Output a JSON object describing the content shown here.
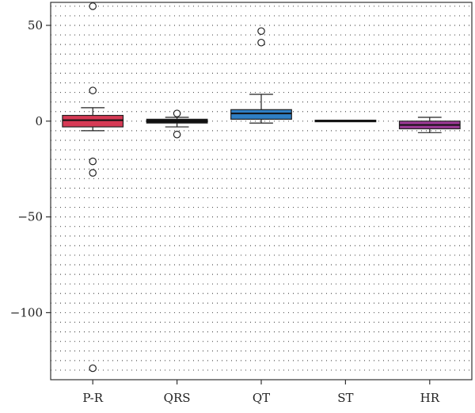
{
  "chart_data": {
    "type": "boxplot",
    "title": "",
    "xlabel": "",
    "ylabel": "",
    "categories": [
      "P-R",
      "QRS",
      "QT",
      "ST",
      "HR"
    ],
    "ylim": [
      -135,
      62
    ],
    "yticks": [
      50,
      0,
      -50,
      -100
    ],
    "ytick_labels": [
      "50",
      "0",
      "−50",
      "−100"
    ],
    "grid": "horizontal dotted",
    "legend": "none",
    "boxes": [
      {
        "name": "P-R",
        "color": "#d63a55",
        "whisker_low": -5,
        "q1": -3,
        "median": 0.5,
        "q3": 3,
        "whisker_high": 7,
        "outliers": [
          60,
          16,
          -21,
          -27,
          -129
        ]
      },
      {
        "name": "QRS",
        "color": "#111111",
        "whisker_low": -3,
        "q1": -1,
        "median": 0,
        "q3": 1,
        "whisker_high": 2,
        "outliers": [
          4,
          -7
        ]
      },
      {
        "name": "QT",
        "color": "#2f7fc4",
        "whisker_low": -1,
        "q1": 1,
        "median": 4,
        "q3": 6,
        "whisker_high": 14,
        "outliers": [
          47,
          41
        ]
      },
      {
        "name": "ST",
        "color": "#111111",
        "whisker_low": 0,
        "q1": 0,
        "median": 0,
        "q3": 0.5,
        "whisker_high": 0.5,
        "outliers": []
      },
      {
        "name": "HR",
        "color": "#9c3a96",
        "whisker_low": -6,
        "q1": -4,
        "median": -2,
        "q3": 0,
        "whisker_high": 2,
        "outliers": []
      }
    ]
  }
}
